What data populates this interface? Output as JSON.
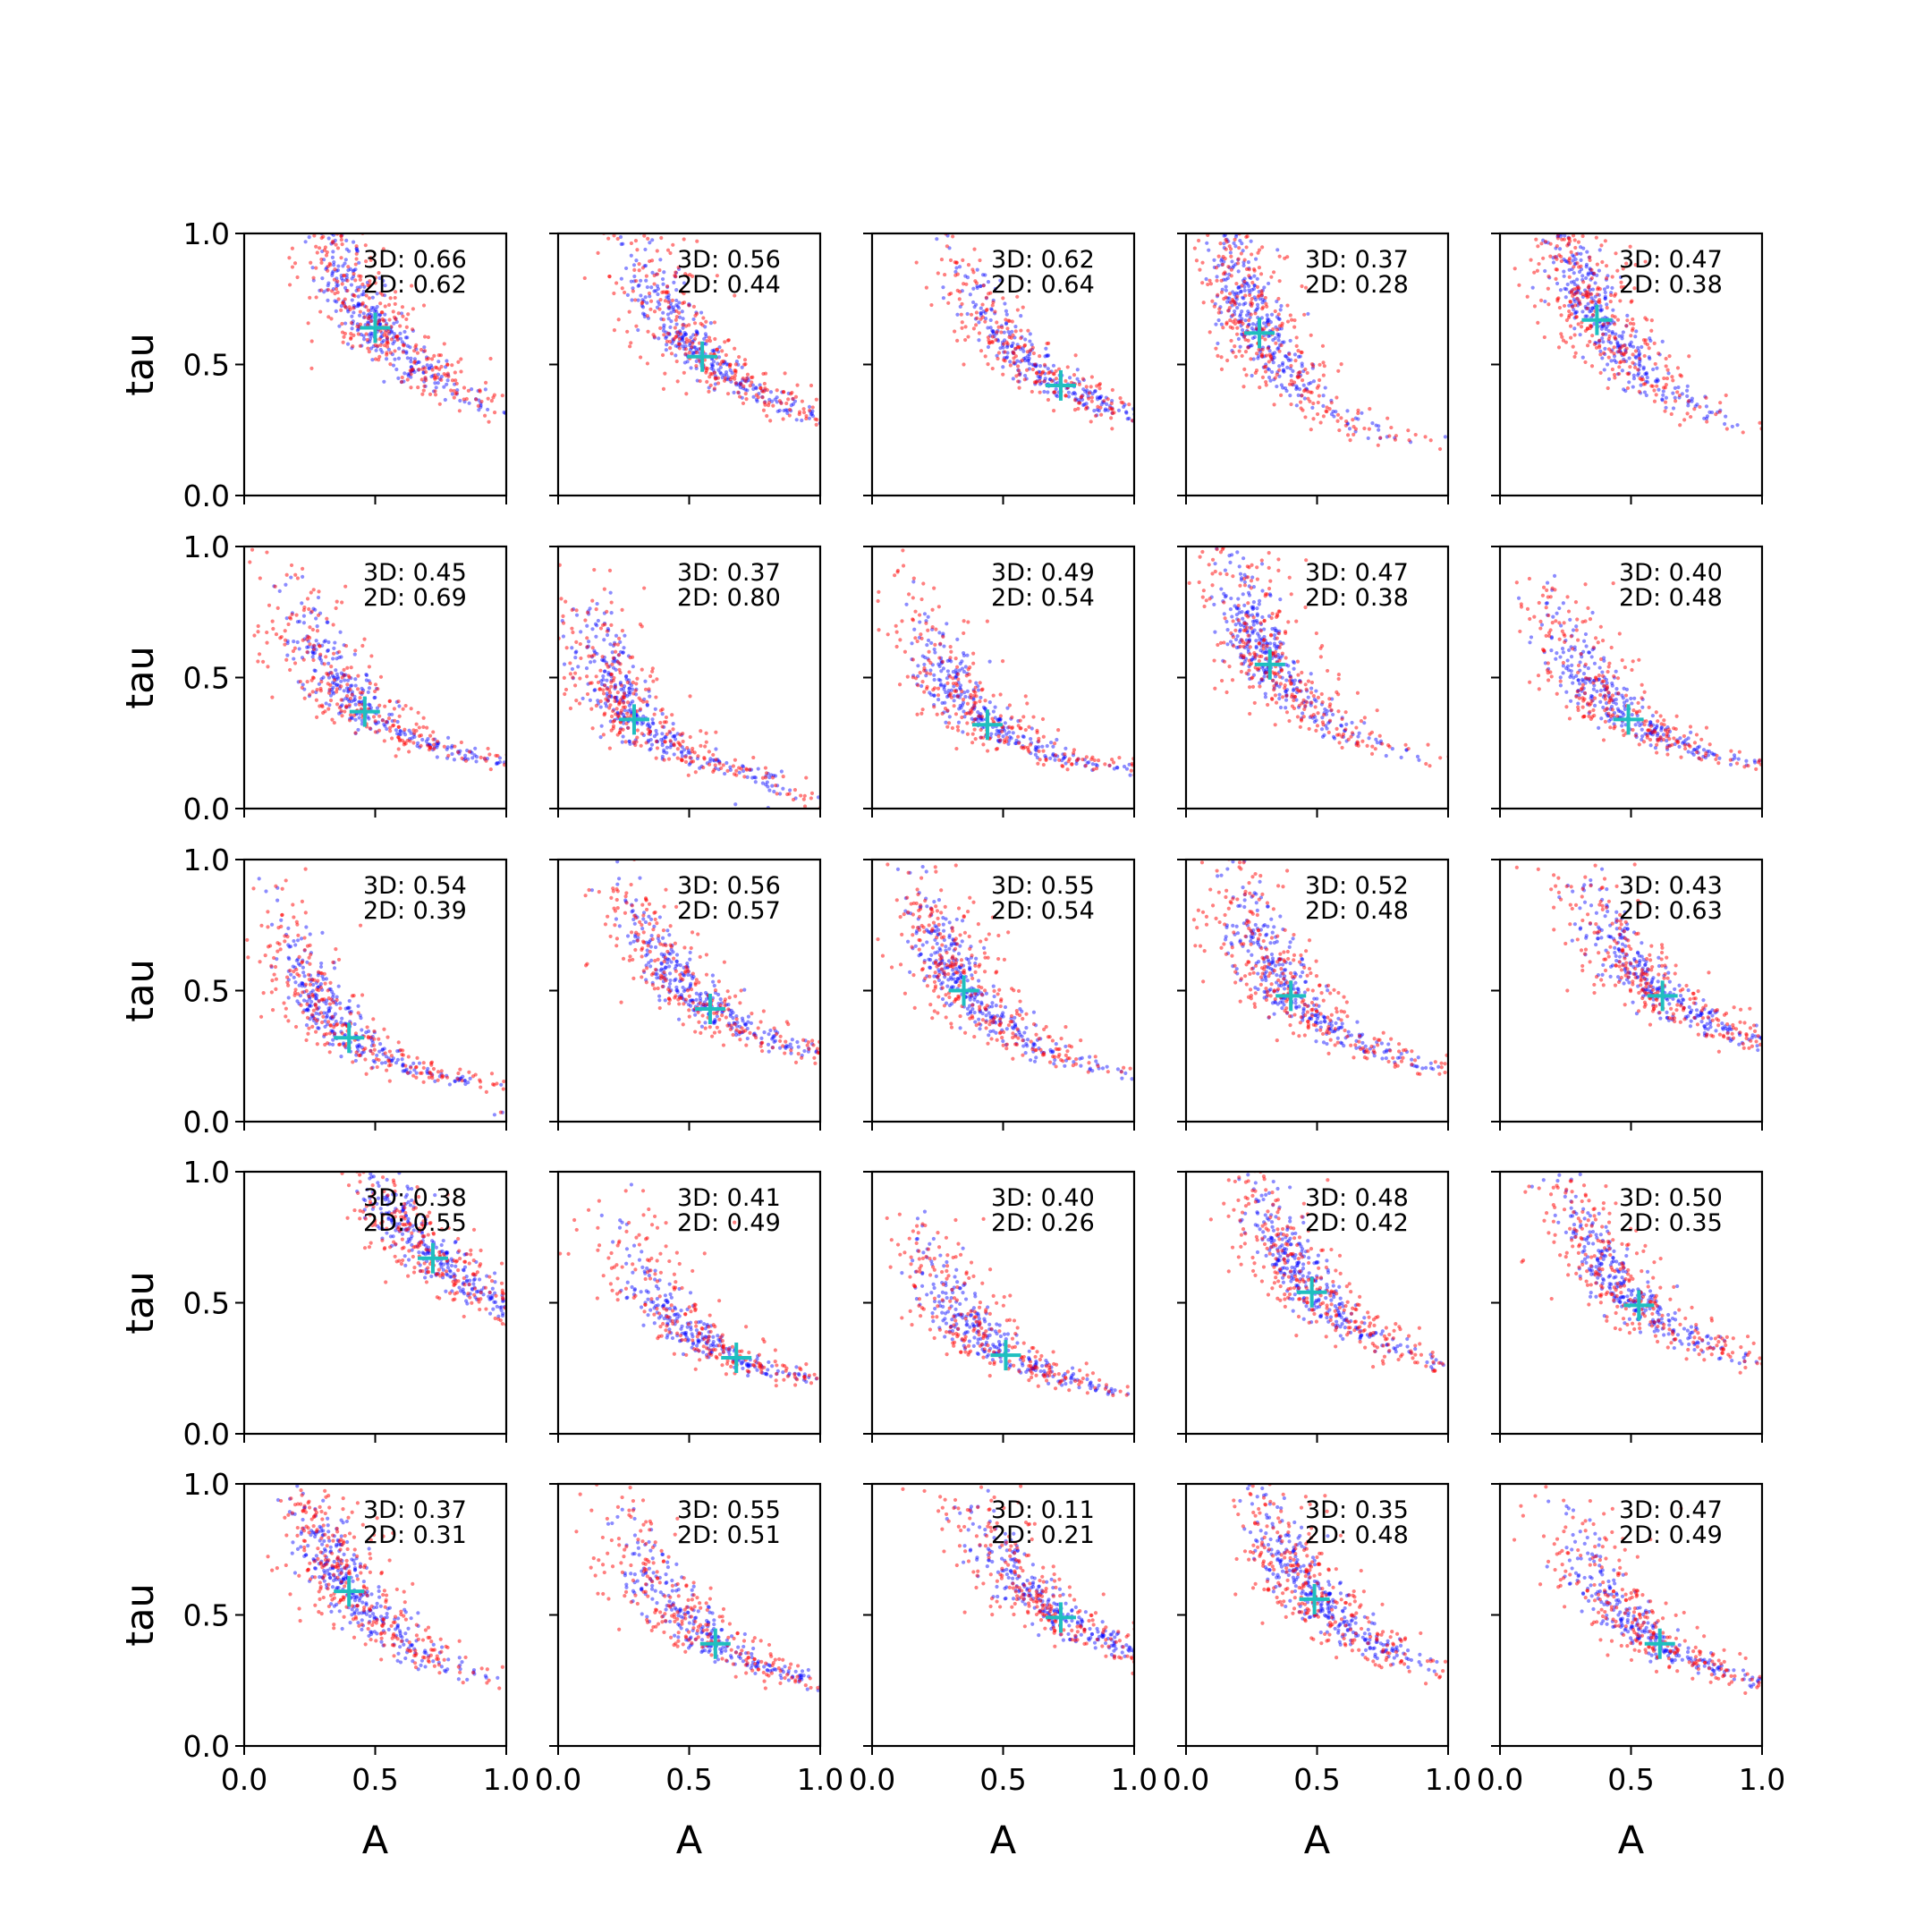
{
  "chart_data": {
    "type": "scatter",
    "layout": "5x5 grid of subplots",
    "xlabel": "A",
    "ylabel": "tau",
    "xlim": [
      0.0,
      1.0
    ],
    "ylim": [
      0.0,
      1.0
    ],
    "x_ticks": [
      "0.0",
      "0.5",
      "1.0"
    ],
    "y_ticks": [
      "0.0",
      "0.5",
      "1.0"
    ],
    "grid": false,
    "series_colors": {
      "blue": "#0000ff",
      "red": "#ff0000",
      "marker": "#1fbfbf"
    },
    "panels": [
      {
        "label3d": "3D: 0.66",
        "label2d": "2D: 0.62",
        "marker": [
          0.5,
          0.64
        ]
      },
      {
        "label3d": "3D: 0.56",
        "label2d": "2D: 0.44",
        "marker": [
          0.55,
          0.53
        ]
      },
      {
        "label3d": "3D: 0.62",
        "label2d": "2D: 0.64",
        "marker": [
          0.72,
          0.42
        ]
      },
      {
        "label3d": "3D: 0.37",
        "label2d": "2D: 0.28",
        "marker": [
          0.28,
          0.62
        ]
      },
      {
        "label3d": "3D: 0.47",
        "label2d": "2D: 0.38",
        "marker": [
          0.37,
          0.67
        ]
      },
      {
        "label3d": "3D: 0.45",
        "label2d": "2D: 0.69",
        "marker": [
          0.46,
          0.37
        ]
      },
      {
        "label3d": "3D: 0.37",
        "label2d": "2D: 0.80",
        "marker": [
          0.29,
          0.34
        ]
      },
      {
        "label3d": "3D: 0.49",
        "label2d": "2D: 0.54",
        "marker": [
          0.44,
          0.32
        ]
      },
      {
        "label3d": "3D: 0.47",
        "label2d": "2D: 0.38",
        "marker": [
          0.32,
          0.55
        ]
      },
      {
        "label3d": "3D: 0.40",
        "label2d": "2D: 0.48",
        "marker": [
          0.49,
          0.34
        ]
      },
      {
        "label3d": "3D: 0.54",
        "label2d": "2D: 0.39",
        "marker": [
          0.4,
          0.32
        ]
      },
      {
        "label3d": "3D: 0.56",
        "label2d": "2D: 0.57",
        "marker": [
          0.58,
          0.43
        ]
      },
      {
        "label3d": "3D: 0.55",
        "label2d": "2D: 0.54",
        "marker": [
          0.35,
          0.5
        ]
      },
      {
        "label3d": "3D: 0.52",
        "label2d": "2D: 0.48",
        "marker": [
          0.4,
          0.48
        ]
      },
      {
        "label3d": "3D: 0.43",
        "label2d": "2D: 0.63",
        "marker": [
          0.62,
          0.48
        ]
      },
      {
        "label3d": "3D: 0.38",
        "label2d": "2D: 0.55",
        "marker": [
          0.72,
          0.67
        ]
      },
      {
        "label3d": "3D: 0.41",
        "label2d": "2D: 0.49",
        "marker": [
          0.68,
          0.29
        ]
      },
      {
        "label3d": "3D: 0.40",
        "label2d": "2D: 0.26",
        "marker": [
          0.51,
          0.3
        ]
      },
      {
        "label3d": "3D: 0.48",
        "label2d": "2D: 0.42",
        "marker": [
          0.48,
          0.54
        ]
      },
      {
        "label3d": "3D: 0.50",
        "label2d": "2D: 0.35",
        "marker": [
          0.53,
          0.49
        ]
      },
      {
        "label3d": "3D: 0.37",
        "label2d": "2D: 0.31",
        "marker": [
          0.4,
          0.59
        ]
      },
      {
        "label3d": "3D: 0.55",
        "label2d": "2D: 0.51",
        "marker": [
          0.6,
          0.39
        ]
      },
      {
        "label3d": "3D: 0.11",
        "label2d": "2D: 0.21",
        "marker": [
          0.72,
          0.49
        ]
      },
      {
        "label3d": "3D: 0.35",
        "label2d": "2D: 0.48",
        "marker": [
          0.49,
          0.56
        ]
      },
      {
        "label3d": "3D: 0.47",
        "label2d": "2D: 0.49",
        "marker": [
          0.61,
          0.39
        ]
      }
    ]
  }
}
